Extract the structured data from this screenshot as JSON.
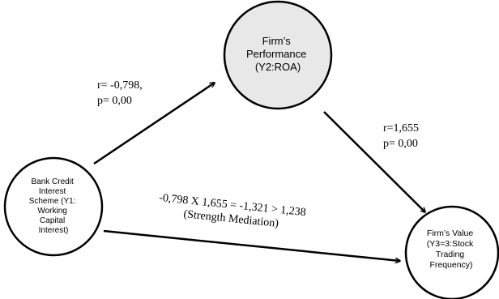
{
  "nodes": {
    "y1": {
      "lines": [
        "Bank Credit",
        "Interest",
        "Scheme (Y1:",
        "Working",
        "Capital",
        "Interest)"
      ]
    },
    "y2": {
      "lines": [
        "Firm’s",
        "Performance",
        "(Y2:ROA)"
      ],
      "fill": "#e8e8e8"
    },
    "y3": {
      "lines": [
        "Firm’s Value",
        "(Y3=3:Stock",
        "Trading",
        "Frequency)"
      ]
    }
  },
  "paths": {
    "y1_to_y2": {
      "lines": [
        "r= -0,798,",
        "p= 0,00"
      ]
    },
    "y2_to_y3": {
      "lines": [
        "r=1,655",
        "p= 0,00"
      ]
    },
    "y1_to_y3": {
      "lines": [
        "-0,798 X 1,655 = -1,321 > 1,238",
        "(Strength Mediation)"
      ]
    }
  },
  "colors": {
    "stroke": "#000000",
    "background": "#ffffff"
  }
}
